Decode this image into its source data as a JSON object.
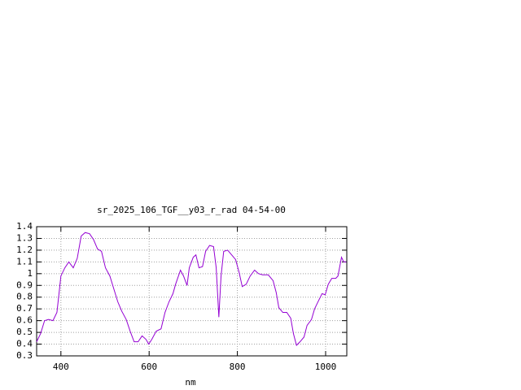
{
  "chart_data": {
    "type": "line",
    "title": "sr_2025_106_TGF__y03_r_rad 04-54-00",
    "x_label": "nm",
    "x": [
      345,
      354,
      363,
      372,
      382,
      391,
      396,
      400,
      409,
      418,
      428,
      437,
      446,
      455,
      465,
      474,
      483,
      492,
      501,
      511,
      520,
      529,
      538,
      548,
      557,
      566,
      575,
      584,
      593,
      599,
      606,
      616,
      627,
      636,
      645,
      654,
      660,
      671,
      678,
      686,
      691,
      700,
      706,
      713,
      721,
      728,
      737,
      746,
      752,
      758,
      763,
      769,
      778,
      787,
      796,
      804,
      811,
      820,
      829,
      839,
      848,
      857,
      870,
      881,
      888,
      894,
      903,
      912,
      921,
      927,
      934,
      942,
      951,
      958,
      968,
      975,
      984,
      992,
      999,
      1006,
      1014,
      1023,
      1028,
      1036,
      1041,
      1047
    ],
    "series": [
      {
        "color": "#9400d3",
        "values": [
          0.42,
          0.49,
          0.6,
          0.61,
          0.6,
          0.67,
          0.84,
          0.98,
          1.05,
          1.1,
          1.05,
          1.13,
          1.32,
          1.35,
          1.34,
          1.29,
          1.21,
          1.19,
          1.05,
          0.98,
          0.87,
          0.76,
          0.68,
          0.61,
          0.51,
          0.42,
          0.42,
          0.47,
          0.44,
          0.4,
          0.44,
          0.51,
          0.53,
          0.67,
          0.76,
          0.83,
          0.91,
          1.03,
          0.98,
          0.9,
          1.05,
          1.14,
          1.16,
          1.05,
          1.06,
          1.19,
          1.24,
          1.23,
          1.05,
          0.63,
          0.98,
          1.19,
          1.2,
          1.16,
          1.12,
          1.01,
          0.89,
          0.91,
          0.98,
          1.03,
          1.0,
          0.99,
          0.99,
          0.94,
          0.84,
          0.71,
          0.67,
          0.67,
          0.62,
          0.49,
          0.39,
          0.42,
          0.46,
          0.56,
          0.61,
          0.7,
          0.77,
          0.83,
          0.82,
          0.91,
          0.96,
          0.96,
          0.98,
          1.14,
          1.1,
          1.1
        ]
      }
    ],
    "xlim": [
      345,
      1048
    ],
    "xticks": [
      400,
      600,
      800,
      1000
    ],
    "ylim": [
      0.3,
      1.4
    ],
    "yticks": [
      0.3,
      0.4,
      0.5,
      0.6,
      0.7,
      0.8,
      0.9,
      1,
      1.1,
      1.2,
      1.3,
      1.4
    ],
    "grid": true
  }
}
